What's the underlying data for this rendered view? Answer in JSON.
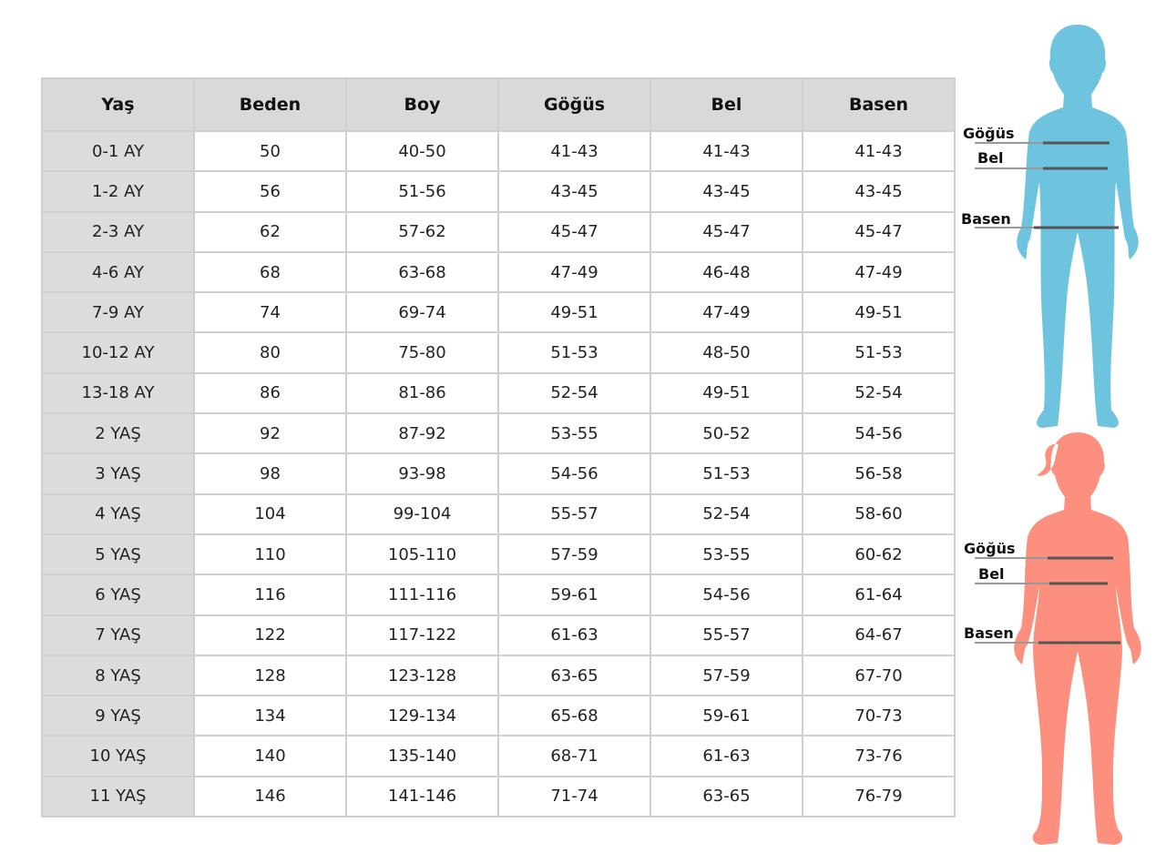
{
  "colors": {
    "header_bg": "#d9d9d9",
    "age_col_bg": "#dcdcdc",
    "boy": "#6ec3df",
    "girl": "#fc8f7e"
  },
  "table": {
    "headers": [
      "Yaş",
      "Beden",
      "Boy",
      "Göğüs",
      "Bel",
      "Basen"
    ],
    "rows": [
      [
        "0-1 AY",
        "50",
        "40-50",
        "41-43",
        "41-43",
        "41-43"
      ],
      [
        "1-2 AY",
        "56",
        "51-56",
        "43-45",
        "43-45",
        "43-45"
      ],
      [
        "2-3 AY",
        "62",
        "57-62",
        "45-47",
        "45-47",
        "45-47"
      ],
      [
        "4-6 AY",
        "68",
        "63-68",
        "47-49",
        "46-48",
        "47-49"
      ],
      [
        "7-9 AY",
        "74",
        "69-74",
        "49-51",
        "47-49",
        "49-51"
      ],
      [
        "10-12 AY",
        "80",
        "75-80",
        "51-53",
        "48-50",
        "51-53"
      ],
      [
        "13-18 AY",
        "86",
        "81-86",
        "52-54",
        "49-51",
        "52-54"
      ],
      [
        "2 YAŞ",
        "92",
        "87-92",
        "53-55",
        "50-52",
        "54-56"
      ],
      [
        "3 YAŞ",
        "98",
        "93-98",
        "54-56",
        "51-53",
        "56-58"
      ],
      [
        "4 YAŞ",
        "104",
        "99-104",
        "55-57",
        "52-54",
        "58-60"
      ],
      [
        "5 YAŞ",
        "110",
        "105-110",
        "57-59",
        "53-55",
        "60-62"
      ],
      [
        "6 YAŞ",
        "116",
        "111-116",
        "59-61",
        "54-56",
        "61-64"
      ],
      [
        "7 YAŞ",
        "122",
        "117-122",
        "61-63",
        "55-57",
        "64-67"
      ],
      [
        "8 YAŞ",
        "128",
        "123-128",
        "63-65",
        "57-59",
        "67-70"
      ],
      [
        "9 YAŞ",
        "134",
        "129-134",
        "65-68",
        "59-61",
        "70-73"
      ],
      [
        "10 YAŞ",
        "140",
        "135-140",
        "68-71",
        "61-63",
        "73-76"
      ],
      [
        "11 YAŞ",
        "146",
        "141-146",
        "71-74",
        "63-65",
        "76-79"
      ]
    ]
  },
  "figures": {
    "boy": {
      "labels": [
        "Göğüs",
        "Bel",
        "Basen"
      ]
    },
    "girl": {
      "labels": [
        "Göğüs",
        "Bel",
        "Basen"
      ]
    }
  }
}
